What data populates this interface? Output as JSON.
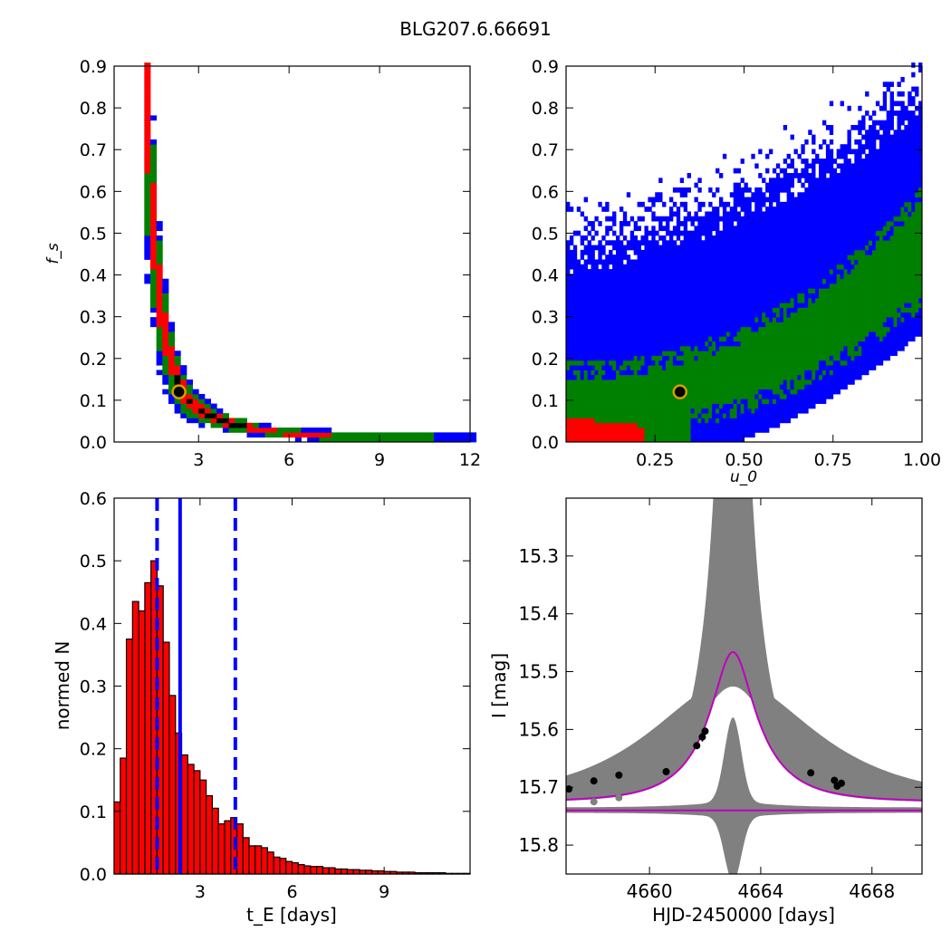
{
  "figure": {
    "title": "BLG207.6.66691"
  },
  "colors": {
    "blue": "#0000ff",
    "green": "#008000",
    "red": "#ff0000",
    "black": "#000000",
    "gray": "#808080",
    "magenta": "#bf00bf",
    "best_fit_marker_edge": "#d4a000"
  },
  "chart_data": [
    {
      "id": "fs-vs-tE",
      "type": "heatmap",
      "xlabel": "",
      "ylabel": "f_s",
      "xlim": [
        0.2,
        12
      ],
      "ylim": [
        0,
        0.9
      ],
      "xticks": [
        "3",
        "6",
        "9",
        "12"
      ],
      "xtick_values": [
        3,
        6,
        9,
        12
      ],
      "yticks": [
        "0.0",
        "0.1",
        "0.2",
        "0.3",
        "0.4",
        "0.5",
        "0.6",
        "0.7",
        "0.8",
        "0.9"
      ],
      "ytick_values": [
        0,
        0.1,
        0.2,
        0.3,
        0.4,
        0.5,
        0.6,
        0.7,
        0.8,
        0.9
      ],
      "confidence_levels": [
        "blue",
        "green",
        "red",
        "black"
      ],
      "best_fit": {
        "tE": 2.35,
        "fs": 0.12
      },
      "ridge": [
        [
          1.25,
          0.88
        ],
        [
          1.4,
          0.65
        ],
        [
          1.55,
          0.45
        ],
        [
          1.7,
          0.35
        ],
        [
          1.85,
          0.28
        ],
        [
          2.0,
          0.22
        ],
        [
          2.2,
          0.17
        ],
        [
          2.4,
          0.13
        ],
        [
          2.7,
          0.1
        ],
        [
          3.0,
          0.08
        ],
        [
          3.5,
          0.06
        ],
        [
          4.0,
          0.045
        ],
        [
          5.0,
          0.03
        ],
        [
          6.0,
          0.02
        ],
        [
          7.5,
          0.014
        ],
        [
          9.0,
          0.011
        ],
        [
          11.0,
          0.008
        ],
        [
          11.8,
          0.007
        ]
      ]
    },
    {
      "id": "fs-vs-u0",
      "type": "heatmap",
      "xlabel": "u_0",
      "ylabel": "",
      "xlim": [
        0,
        1
      ],
      "ylim": [
        0,
        0.9
      ],
      "xticks": [
        "0.25",
        "0.50",
        "0.75",
        "1.00"
      ],
      "xtick_values": [
        0.25,
        0.5,
        0.75,
        1.0
      ],
      "yticks": [
        "0.0",
        "0.1",
        "0.2",
        "0.3",
        "0.4",
        "0.5",
        "0.6",
        "0.7",
        "0.8",
        "0.9"
      ],
      "ytick_values": [
        0,
        0.1,
        0.2,
        0.3,
        0.4,
        0.5,
        0.6,
        0.7,
        0.8,
        0.9
      ],
      "confidence_levels": [
        "blue",
        "green",
        "red"
      ],
      "best_fit": {
        "u0": 0.32,
        "fs": 0.12
      }
    },
    {
      "id": "tE-histogram",
      "type": "bar",
      "xlabel": "t_E [days]",
      "ylabel": "normed N",
      "xlim": [
        0.2,
        11.8
      ],
      "ylim": [
        0,
        0.6
      ],
      "xticks": [
        "3",
        "6",
        "9"
      ],
      "xtick_values": [
        3,
        6,
        9
      ],
      "yticks": [
        "0.0",
        "0.1",
        "0.2",
        "0.3",
        "0.4",
        "0.5",
        "0.6"
      ],
      "ytick_values": [
        0,
        0.1,
        0.2,
        0.3,
        0.4,
        0.5,
        0.6
      ],
      "bin_start": 0.2,
      "bin_width": 0.2,
      "values": [
        0.115,
        0.185,
        0.375,
        0.435,
        0.42,
        0.465,
        0.5,
        0.46,
        0.37,
        0.285,
        0.225,
        0.19,
        0.175,
        0.165,
        0.15,
        0.125,
        0.105,
        0.08,
        0.085,
        0.09,
        0.08,
        0.058,
        0.045,
        0.045,
        0.042,
        0.035,
        0.027,
        0.025,
        0.02,
        0.018,
        0.015,
        0.013,
        0.012,
        0.012,
        0.01,
        0.01,
        0.008,
        0.008,
        0.007,
        0.007,
        0.006,
        0.006,
        0.005,
        0.005,
        0.004,
        0.004,
        0.003,
        0.003,
        0.003,
        0.002,
        0.002,
        0.002,
        0.002,
        0.002,
        0.001,
        0.001,
        0.001,
        0.001
      ],
      "vlines": [
        {
          "x": 1.6,
          "style": "dashed"
        },
        {
          "x": 2.35,
          "style": "solid"
        },
        {
          "x": 4.15,
          "style": "dashed"
        }
      ]
    },
    {
      "id": "light-curve",
      "type": "line",
      "xlabel": "HJD-2450000 [days]",
      "ylabel": "I [mag]",
      "xlim": [
        4657,
        4669.8
      ],
      "ylim": [
        15.85,
        15.2
      ],
      "xticks": [
        "4660",
        "4664",
        "4668"
      ],
      "xtick_values": [
        4660,
        4664,
        4668
      ],
      "yticks": [
        "15.3",
        "15.4",
        "15.5",
        "15.6",
        "15.7",
        "15.8"
      ],
      "ytick_values": [
        15.3,
        15.4,
        15.5,
        15.6,
        15.7,
        15.8
      ],
      "model": {
        "t0": 4663.0,
        "tE": 2.35,
        "u0": 0.32,
        "fs": 0.12,
        "baseline": 15.725
      },
      "baseline_line": 15.74,
      "points": [
        {
          "x": 4657.1,
          "y": 15.703,
          "err": 0.006
        },
        {
          "x": 4658.0,
          "y": 15.689,
          "err": 0.006
        },
        {
          "x": 4658.9,
          "y": 15.679,
          "err": 0.006
        },
        {
          "x": 4660.6,
          "y": 15.673,
          "err": 0.006
        },
        {
          "x": 4661.7,
          "y": 15.628,
          "err": 0.006
        },
        {
          "x": 4661.9,
          "y": 15.613,
          "err": 0.008
        },
        {
          "x": 4662.0,
          "y": 15.603,
          "err": 0.006
        },
        {
          "x": 4665.8,
          "y": 15.675,
          "err": 0.006
        },
        {
          "x": 4666.65,
          "y": 15.688,
          "err": 0.006
        },
        {
          "x": 4666.75,
          "y": 15.698,
          "err": 0.006
        },
        {
          "x": 4666.9,
          "y": 15.693,
          "err": 0.006
        }
      ],
      "residual_points": [
        {
          "x": 4658.0,
          "y": 15.725
        },
        {
          "x": 4658.9,
          "y": 15.718
        }
      ]
    }
  ]
}
